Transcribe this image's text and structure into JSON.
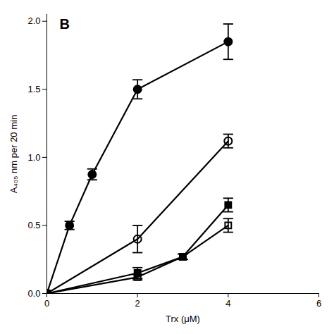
{
  "chart_data": {
    "type": "line",
    "xlabel": "Trx (μM)",
    "ylabel": "A₄₀₅ nm per 20 min",
    "annotations": [
      "B"
    ],
    "xlim": [
      0,
      6
    ],
    "ylim": [
      0,
      2.05
    ],
    "xticks": [
      0,
      2,
      4,
      6
    ],
    "yticks": [
      {
        "value": 0,
        "label": "0.0"
      },
      0.5,
      {
        "value": 1.0,
        "label": "1.0"
      },
      1.5,
      {
        "value": 2.0,
        "label": "2.0"
      }
    ],
    "series": [
      {
        "color": "black",
        "marker": "circle",
        "x": [
          0,
          0.5,
          1.0,
          2.0,
          4.0
        ],
        "values": [
          0,
          0.5,
          0.875,
          1.5,
          1.85
        ],
        "yerr": [
          0,
          0.03,
          0.04,
          0.07,
          0.13
        ]
      },
      {
        "color": "black",
        "marker": "circle_open",
        "x": [
          0,
          2.0,
          4.0
        ],
        "values": [
          0,
          0.4,
          1.12
        ],
        "yerr": [
          0,
          0.1,
          0.05
        ]
      },
      {
        "color": "black",
        "marker": "square",
        "x": [
          0,
          2.0,
          3.0,
          4.0
        ],
        "values": [
          0,
          0.15,
          0.27,
          0.65
        ],
        "yerr": [
          0,
          0.04,
          0.02,
          0.05
        ]
      },
      {
        "color": "black",
        "marker": "square_open",
        "x": [
          0,
          2.0,
          3.0,
          4.0
        ],
        "values": [
          0,
          0.12,
          0.27,
          0.5
        ],
        "yerr": [
          0,
          0.02,
          0.02,
          0.05
        ]
      }
    ]
  }
}
